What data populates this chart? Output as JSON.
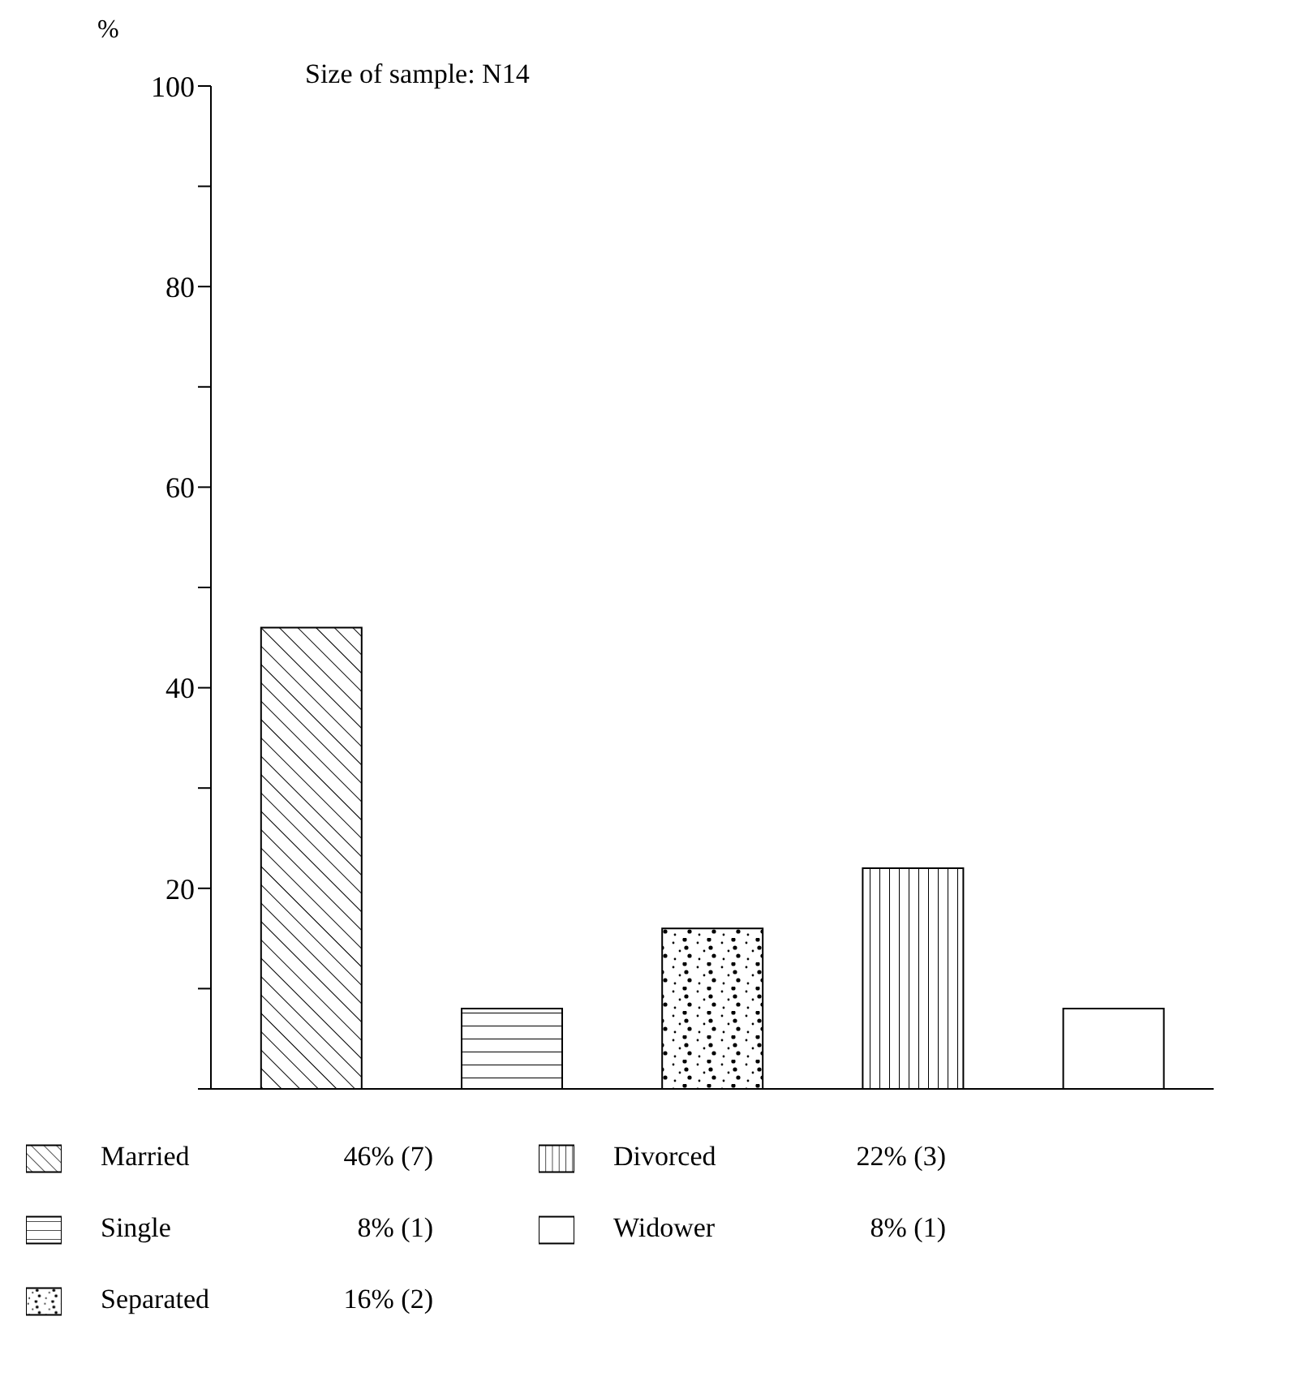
{
  "chart_data": {
    "type": "bar",
    "ylabel": "%",
    "annotations": [
      "Size of sample: N14",
      "46% (7)",
      "8% (1)",
      "16% (2)",
      "22% (3)",
      "8% (1)"
    ],
    "categories": [
      null,
      null,
      null,
      null,
      null
    ],
    "stacked": true,
    "series": [
      {
        "name": "Married",
        "color": "#000000",
        "values": [
          46,
          null,
          null,
          null,
          null
        ]
      },
      {
        "name": "Single",
        "color": "#000000",
        "values": [
          null,
          8,
          null,
          null,
          null
        ]
      },
      {
        "name": "Separated",
        "color": "#000000",
        "values": [
          null,
          null,
          16,
          null,
          null
        ]
      },
      {
        "name": "Divorced",
        "color": "#000000",
        "values": [
          null,
          null,
          null,
          22,
          null
        ]
      },
      {
        "name": "Widower",
        "color": "#000000",
        "values": [
          null,
          null,
          null,
          null,
          8
        ]
      }
    ],
    "ylim": [
      0,
      100
    ],
    "yticks": [
      {
        "value": 0,
        "label": null
      },
      {
        "value": 10,
        "label": null
      },
      20,
      {
        "value": 30,
        "label": null
      },
      40,
      {
        "value": 50,
        "label": null
      },
      60,
      {
        "value": 70,
        "label": null
      },
      80,
      {
        "value": 90,
        "label": null
      },
      100
    ],
    "tick_labels": "y",
    "legend": "bottom",
    "grid": false
  }
}
